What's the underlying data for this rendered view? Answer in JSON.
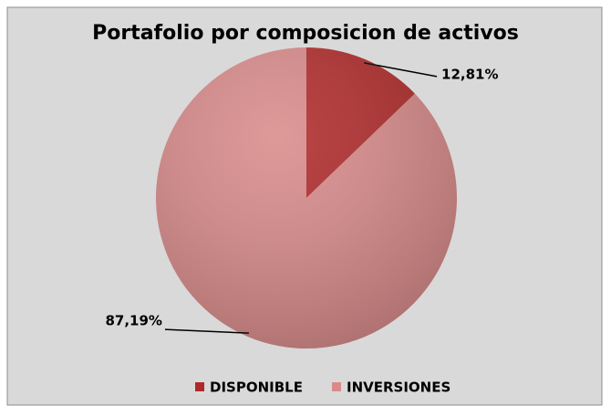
{
  "chart_data": {
    "type": "pie",
    "title": "Portafolio por composicion de activos",
    "categories": [
      "DISPONIBLE",
      "INVERSIONES"
    ],
    "values": [
      12.81,
      87.19
    ],
    "value_labels": [
      "12,81%",
      "87,19%"
    ],
    "colors": [
      "#b02a2a",
      "#d98a8a"
    ],
    "legend": "bottom"
  }
}
